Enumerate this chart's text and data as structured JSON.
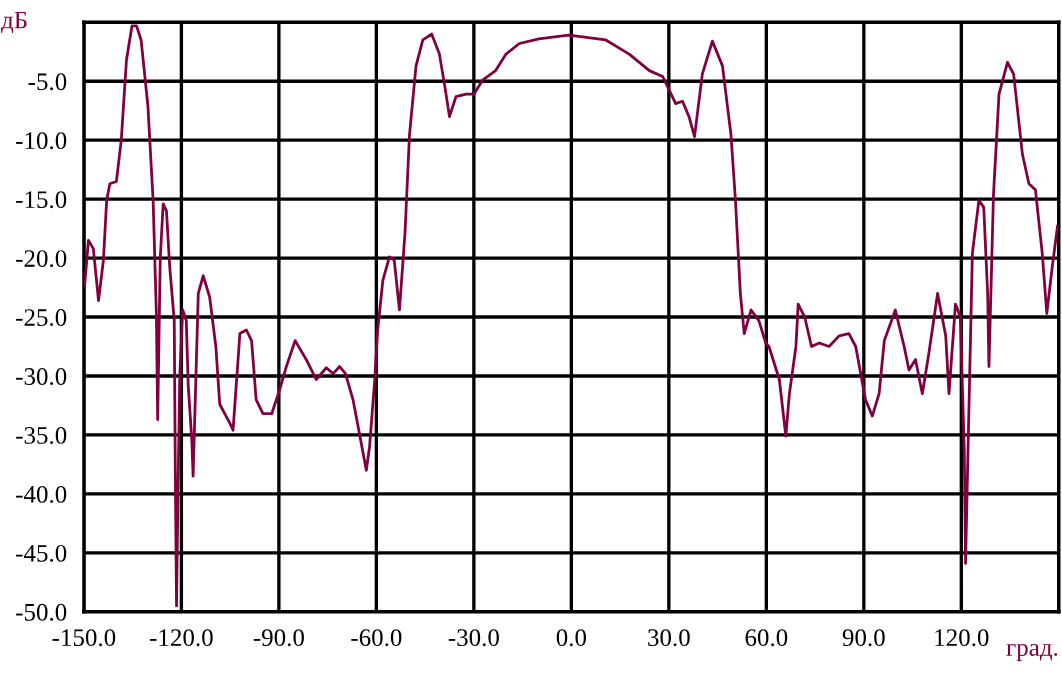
{
  "chart_data": {
    "type": "line",
    "xlabel": "град.",
    "ylabel": "дБ",
    "xlim": [
      -150,
      150
    ],
    "ylim": [
      -50,
      0
    ],
    "xticks": [
      {
        "value": -150,
        "label": "-150.0"
      },
      {
        "value": -120,
        "label": "-120.0"
      },
      {
        "value": -90,
        "label": "-90.0"
      },
      {
        "value": -60,
        "label": "-60.0"
      },
      {
        "value": -30,
        "label": "-30.0"
      },
      {
        "value": 0,
        "label": "0.0"
      },
      {
        "value": 30,
        "label": "30.0"
      },
      {
        "value": 60,
        "label": "60.0"
      },
      {
        "value": 90,
        "label": "90.0"
      },
      {
        "value": 120,
        "label": "120.0"
      },
      {
        "value": 150,
        "label": null
      }
    ],
    "yticks": [
      {
        "value": 0,
        "label": null
      },
      {
        "value": -5,
        "label": "-5.0"
      },
      {
        "value": -10,
        "label": "-10.0"
      },
      {
        "value": -15,
        "label": "-15.0"
      },
      {
        "value": -20,
        "label": "-20.0"
      },
      {
        "value": -25,
        "label": "-25.0"
      },
      {
        "value": -30,
        "label": "-30.0"
      },
      {
        "value": -35,
        "label": "-35.0"
      },
      {
        "value": -40,
        "label": "-40.0"
      },
      {
        "value": -45,
        "label": "-45.0"
      },
      {
        "value": -50,
        "label": "-50.0"
      }
    ],
    "grid": true,
    "marker": "none",
    "line_style": "solid",
    "series": [
      {
        "color": "#800040",
        "x": [
          -149.8,
          -148.6,
          -147.1,
          -145.5,
          -144,
          -143,
          -142,
          -140,
          -138.5,
          -136.9,
          -135.2,
          -133.8,
          -132.4,
          -130.3,
          -128.7,
          -127.7,
          -127.3,
          -126.5,
          -125.6,
          -124.6,
          -123.6,
          -122.2,
          -121.9,
          -121.5,
          -121.1,
          -120.5,
          -119.6,
          -118.5,
          -117.9,
          -116.8,
          -116.4,
          -114.8,
          -113.3,
          -111.3,
          -109.4,
          -108.2,
          -105.1,
          -104.1,
          -102,
          -100,
          -98.4,
          -97,
          -94.9,
          -92.2,
          -89.8,
          -87.7,
          -85,
          -81.6,
          -78.5,
          -75.4,
          -73.3,
          -71.3,
          -69.5,
          -67.2,
          -65.2,
          -63.1,
          -62.1,
          -60.5,
          -59.6,
          -58,
          -56,
          -54.5,
          -52.9,
          -51.2,
          -49.8,
          -47.8,
          -45.7,
          -43,
          -40.6,
          -38.9,
          -37.5,
          -35.5,
          -32.4,
          -30,
          -27.3,
          -23.3,
          -20.1,
          -16,
          -10,
          -0.8,
          10.6,
          17.8,
          24,
          28.1,
          32.1,
          34.2,
          36.2,
          37.9,
          40.3,
          43.4,
          46.5,
          49.1,
          50.5,
          52,
          53.2,
          55.3,
          57.7,
          59.8,
          60.8,
          64,
          66,
          67.1,
          69.1,
          69.8,
          71.8,
          73.9,
          76.3,
          79.3,
          82.4,
          85.4,
          87.5,
          90.5,
          92.6,
          94.7,
          96.3,
          99.7,
          102.4,
          103.9,
          105.9,
          108,
          110,
          112.7,
          115.2,
          116.2,
          118.2,
          119.7,
          120.9,
          121.3,
          121.9,
          123.4,
          125.4,
          126.9,
          128.1,
          128.5,
          129.9,
          131.6,
          134.2,
          136.1,
          138.8,
          140.8,
          142.8,
          144.9,
          146.3,
          148,
          149.6
        ],
        "values": [
          -22.4,
          -18.5,
          -19.2,
          -23.6,
          -20.2,
          -15.1,
          -13.7,
          -13.5,
          -10,
          -3.2,
          -0.3,
          -0.3,
          -1.5,
          -7.1,
          -15.1,
          -24.7,
          -33.7,
          -20,
          -15.4,
          -16,
          -20.7,
          -25.3,
          -37,
          -49.5,
          -41,
          -30,
          -24.4,
          -25.3,
          -30.8,
          -35.4,
          -38.5,
          -23,
          -21.5,
          -23.3,
          -27.5,
          -32.4,
          -34,
          -34.6,
          -26.4,
          -26.1,
          -27,
          -32,
          -33.2,
          -33.2,
          -31.2,
          -29.2,
          -27,
          -28.6,
          -30.3,
          -29.3,
          -29.8,
          -29.2,
          -29.8,
          -32,
          -34.9,
          -38,
          -36,
          -30.3,
          -26.1,
          -21.9,
          -19.9,
          -20.2,
          -24.4,
          -17.9,
          -9.5,
          -3.7,
          -1.5,
          -1,
          -2.7,
          -5.5,
          -8,
          -6.3,
          -6.1,
          -6.1,
          -4.9,
          -4.1,
          -2.7,
          -1.8,
          -1.4,
          -1.1,
          -1.5,
          -2.7,
          -4.1,
          -4.6,
          -6.9,
          -6.7,
          -8,
          -9.7,
          -4.4,
          -1.6,
          -3.7,
          -9.5,
          -15.1,
          -23,
          -26.4,
          -24.4,
          -25.3,
          -27.2,
          -27.5,
          -30.3,
          -35.1,
          -31.5,
          -27.5,
          -23.9,
          -25,
          -27.5,
          -27.2,
          -27.5,
          -26.6,
          -26.4,
          -27.5,
          -32,
          -33.4,
          -31.5,
          -27,
          -24.4,
          -27.5,
          -29.5,
          -28.6,
          -31.5,
          -28.1,
          -23,
          -26.6,
          -31.5,
          -23.9,
          -25,
          -36.2,
          -45.9,
          -38.3,
          -19.6,
          -15.1,
          -15.7,
          -23,
          -29.2,
          -14.6,
          -6.1,
          -3.4,
          -4.4,
          -11.2,
          -13.7,
          -14.2,
          -19.6,
          -24.7,
          -20.7,
          -17.3
        ]
      }
    ]
  }
}
